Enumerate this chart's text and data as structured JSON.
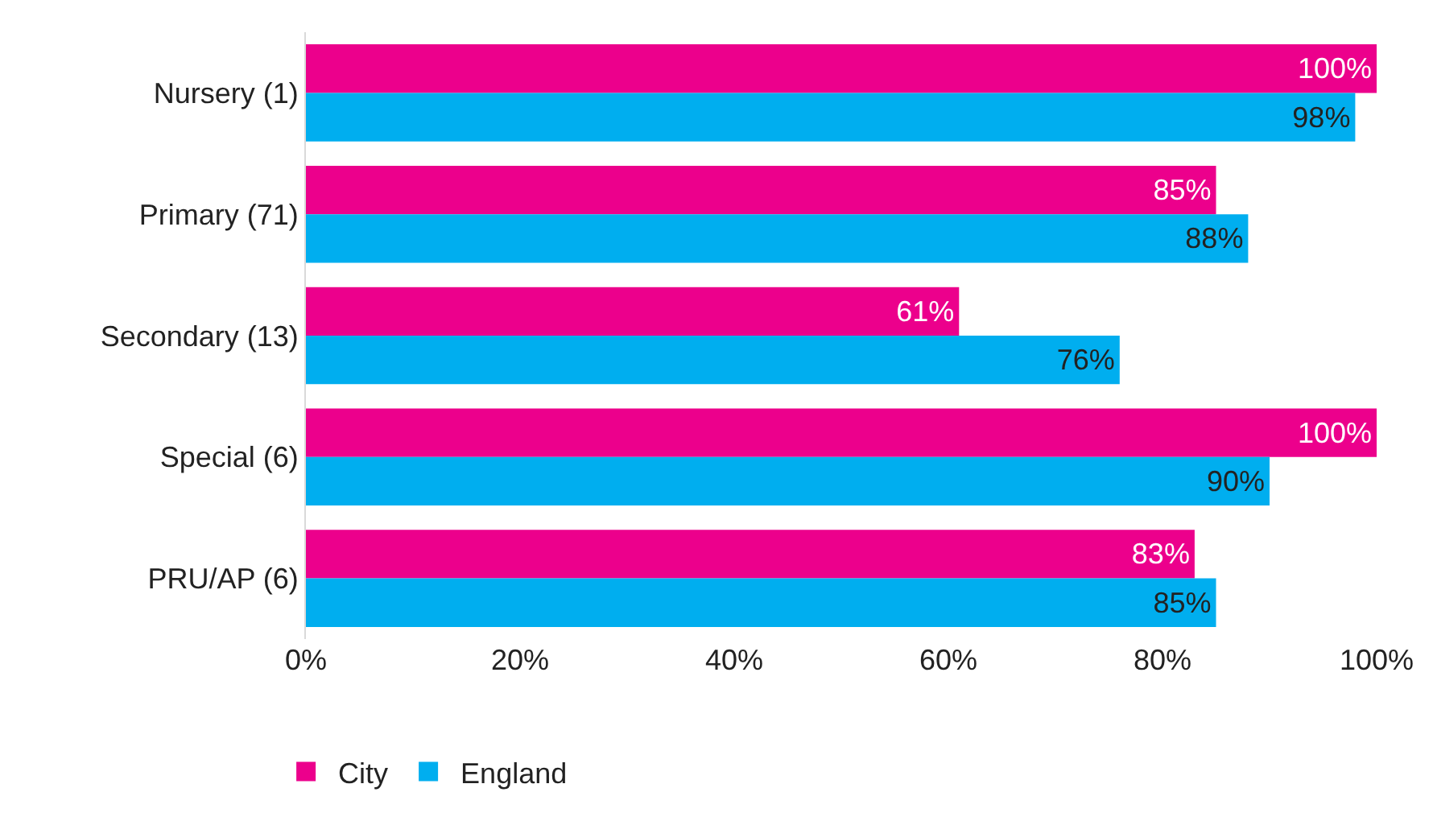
{
  "chart_data": {
    "type": "bar",
    "orientation": "horizontal",
    "categories": [
      "Nursery (1)",
      "Primary (71)",
      "Secondary (13)",
      "Special (6)",
      "PRU/AP (6)"
    ],
    "series": [
      {
        "name": "City",
        "color": "#ec008c",
        "values": [
          100,
          85,
          61,
          100,
          83
        ],
        "value_labels": [
          "100%",
          "85%",
          "61%",
          "100%",
          "83%"
        ]
      },
      {
        "name": "England",
        "color": "#00aeef",
        "values": [
          98,
          88,
          76,
          90,
          85
        ],
        "value_labels": [
          "98%",
          "88%",
          "76%",
          "90%",
          "85%"
        ]
      }
    ],
    "xlim": [
      0,
      100
    ],
    "xticks": [
      {
        "value": 0,
        "label": "0%"
      },
      {
        "value": 20,
        "label": "20%"
      },
      {
        "value": 40,
        "label": "40%"
      },
      {
        "value": 60,
        "label": "60%"
      },
      {
        "value": 80,
        "label": "80%"
      },
      {
        "value": 100,
        "label": "100%"
      }
    ],
    "legend": "bottom left"
  }
}
